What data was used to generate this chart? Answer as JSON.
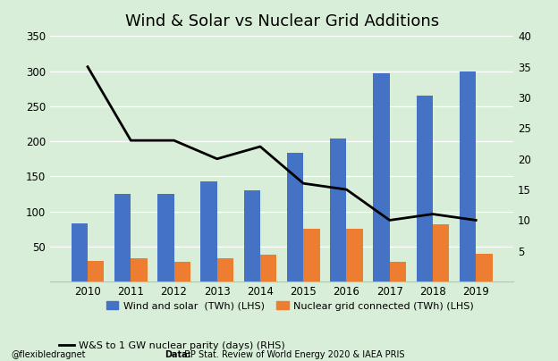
{
  "title": "Wind & Solar vs Nuclear Grid Additions",
  "years": [
    2010,
    2011,
    2012,
    2013,
    2014,
    2015,
    2016,
    2017,
    2018,
    2019
  ],
  "wind_solar": [
    83,
    125,
    125,
    143,
    130,
    183,
    204,
    297,
    265,
    300
  ],
  "nuclear_grid": [
    30,
    33,
    28,
    33,
    38,
    75,
    75,
    28,
    82,
    40
  ],
  "parity_days": [
    35,
    23,
    23,
    20,
    22,
    16,
    15,
    10,
    11,
    10
  ],
  "bar_color_blue": "#4472C4",
  "bar_color_orange": "#ED7D31",
  "line_color": "#000000",
  "background_color": "#D8EED8",
  "ylim_left": [
    0,
    350
  ],
  "ylim_right": [
    0,
    40
  ],
  "yticks_left": [
    0,
    50,
    100,
    150,
    200,
    250,
    300,
    350
  ],
  "yticks_right": [
    0,
    5,
    10,
    15,
    20,
    25,
    30,
    35,
    40
  ],
  "ytick_labels_right": [
    "",
    "5",
    "10",
    "15",
    "20",
    "25",
    "30",
    "35",
    "40"
  ],
  "legend_blue": "Wind and solar  (TWh) (LHS)",
  "legend_orange": "Nuclear grid connected (TWh) (LHS)",
  "legend_line": "W&S to 1 GW nuclear parity (days) (RHS)",
  "footer_left": "@flexibledragnet",
  "footer_data_bold": "Data:",
  "footer_data_rest": " BP Stat. Review of World Energy 2020 & IAEA PRIS",
  "title_fontsize": 13,
  "tick_fontsize": 8.5,
  "legend_fontsize": 8,
  "footer_fontsize": 7
}
